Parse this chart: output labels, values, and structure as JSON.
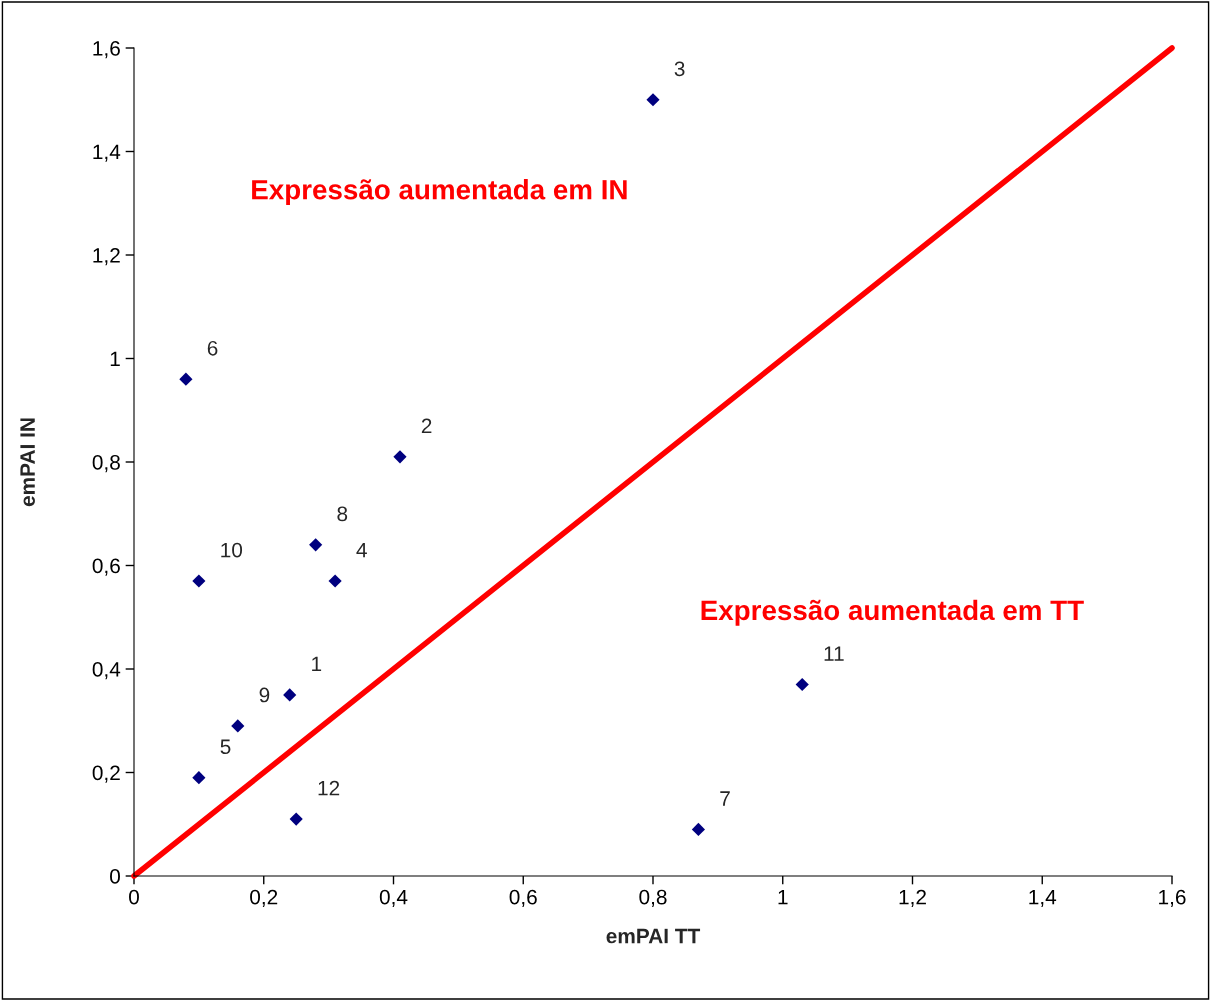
{
  "chart_data": {
    "type": "scatter",
    "xlabel": "emPAI TT",
    "ylabel": "emPAI IN",
    "xlim": [
      0,
      1.6
    ],
    "ylim": [
      0,
      1.6
    ],
    "xticks": [
      0,
      {
        "value": 0.2,
        "label": "0,2"
      },
      {
        "value": 0.4,
        "label": "0,4"
      },
      {
        "value": 0.6,
        "label": "0,6"
      },
      {
        "value": 0.8,
        "label": "0,8"
      },
      1,
      {
        "value": 1.2,
        "label": "1,2"
      },
      {
        "value": 1.4,
        "label": "1,4"
      },
      {
        "value": 1.6,
        "label": "1,6"
      }
    ],
    "yticks": [
      0,
      {
        "value": 0.2,
        "label": "0,2"
      },
      {
        "value": 0.4,
        "label": "0,4"
      },
      {
        "value": 0.6,
        "label": "0,6"
      },
      {
        "value": 0.8,
        "label": "0,8"
      },
      1,
      {
        "value": 1.2,
        "label": "1,2"
      },
      {
        "value": 1.4,
        "label": "1,4"
      },
      {
        "value": 1.6,
        "label": "1,6"
      }
    ],
    "grid": false,
    "legend": false,
    "series": [
      {
        "marker": "diamond",
        "color": "#00007f",
        "x": [
          0.24,
          0.41,
          0.8,
          0.31,
          0.1,
          0.08,
          0.87,
          0.28,
          0.16,
          0.1,
          1.03,
          0.25
        ],
        "values": [
          0.35,
          0.81,
          1.5,
          0.57,
          0.19,
          0.96,
          0.09,
          0.64,
          0.29,
          0.57,
          0.37,
          0.11
        ]
      },
      {
        "type": "line",
        "color": "#ff0000",
        "x": [
          0,
          1.6
        ],
        "values": [
          0,
          1.6
        ]
      }
    ],
    "annotations": [
      "Expressão aumentada em IN",
      "Expressão aumentada em TT",
      {
        "text": "1",
        "x": 0.24,
        "y": 0.35
      },
      {
        "text": "2",
        "x": 0.41,
        "y": 0.81
      },
      {
        "text": "3",
        "x": 0.8,
        "y": 1.5
      },
      {
        "text": "4",
        "x": 0.31,
        "y": 0.57
      },
      {
        "text": "5",
        "x": 0.1,
        "y": 0.19
      },
      {
        "text": "6",
        "x": 0.08,
        "y": 0.96
      },
      {
        "text": "7",
        "x": 0.87,
        "y": 0.09
      },
      {
        "text": "8",
        "x": 0.28,
        "y": 0.64
      },
      {
        "text": "9",
        "x": 0.16,
        "y": 0.29
      },
      {
        "text": "10",
        "x": 0.1,
        "y": 0.57
      },
      {
        "text": "11",
        "x": 1.03,
        "y": 0.37
      },
      {
        "text": "12",
        "x": 0.25,
        "y": 0.11
      }
    ]
  }
}
